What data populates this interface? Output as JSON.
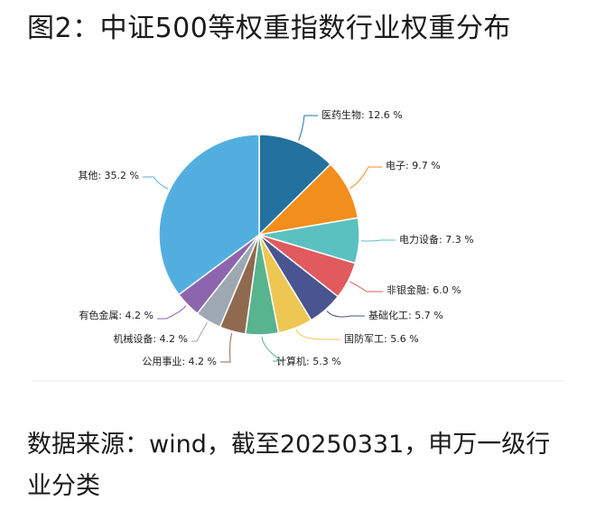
{
  "title": "图2：中证500等权重指数行业权重分布",
  "source": "数据来源：wind，截至20250331，申万一级行业分类",
  "chart_data": {
    "type": "pie",
    "start_angle_deg": 0,
    "direction": "clockwise",
    "value_suffix": " %",
    "slices": [
      {
        "name": "医药生物",
        "value": 12.6,
        "color": "#22719E"
      },
      {
        "name": "电子",
        "value": 9.7,
        "color": "#F28E1C"
      },
      {
        "name": "电力设备",
        "value": 7.3,
        "color": "#5BC0C0"
      },
      {
        "name": "非银金融",
        "value": 6.0,
        "color": "#E05A5E"
      },
      {
        "name": "基础化工",
        "value": 5.7,
        "color": "#4A5490"
      },
      {
        "name": "国防军工",
        "value": 5.6,
        "color": "#EDC752"
      },
      {
        "name": "计算机",
        "value": 5.3,
        "color": "#58B38F"
      },
      {
        "name": "公用事业",
        "value": 4.2,
        "color": "#906A4E"
      },
      {
        "name": "机械设备",
        "value": 4.2,
        "color": "#9DA8B3"
      },
      {
        "name": "有色金属",
        "value": 4.2,
        "color": "#8D65AE"
      },
      {
        "name": "其他",
        "value": 35.2,
        "color": "#53AEE0"
      }
    ]
  }
}
